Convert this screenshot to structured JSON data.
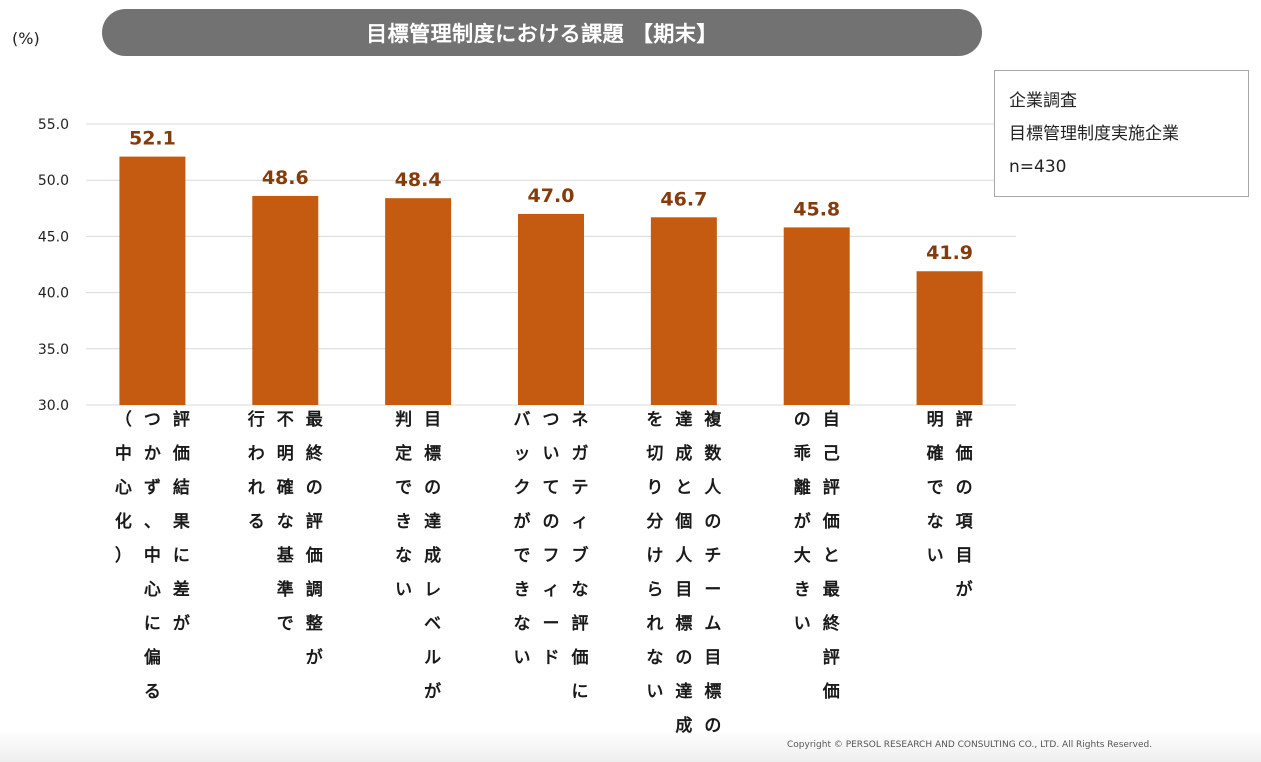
{
  "header": {
    "title": "目標管理制度における課題 【期末】",
    "unit": "(%)"
  },
  "legend": {
    "lines": [
      "企業調査",
      "目標管理制度実施企業",
      "n=430"
    ]
  },
  "footer": {
    "copyright": "Copyright © PERSOL RESEARCH AND CONSULTING CO., LTD. All Rights Reserved."
  },
  "colors": {
    "bar": "#C55A11",
    "value_label": "#843C0C",
    "grid": "#D9D9D9",
    "title_bg": "#727272"
  },
  "chart_data": {
    "type": "bar",
    "title": "目標管理制度における課題 【期末】",
    "ylabel": "(%)",
    "xlabel": "",
    "ylim": [
      30,
      55
    ],
    "yticks": [
      "55.0",
      "50.0",
      "45.0",
      "40.0",
      "35.0",
      "30.0"
    ],
    "grid": true,
    "categories": [
      {
        "id": "central-tendency",
        "columns": [
          "評価結果に差が",
          "つかず、中心に偏る",
          "（中心化）"
        ]
      },
      {
        "id": "unclear-adjustment",
        "columns": [
          "最終の評価調整が",
          "不明確な基準で",
          "行われる"
        ]
      },
      {
        "id": "achievement-level",
        "columns": [
          "目標の達成レベルが",
          "判定できない"
        ]
      },
      {
        "id": "negative-feedback",
        "columns": [
          "ネガティブな評価に",
          "ついてのフィード",
          "バックができない"
        ]
      },
      {
        "id": "team-vs-individual",
        "columns": [
          "複数人のチーム目標の",
          "達成と個人目標の達成",
          "を切り分けられない"
        ]
      },
      {
        "id": "self-vs-final",
        "columns": [
          "自己評価と最終評価",
          "の乖離が大きい"
        ]
      },
      {
        "id": "unclear-items",
        "columns": [
          "評価の項目が",
          "明確でない"
        ]
      }
    ],
    "values": [
      52.1,
      48.6,
      48.4,
      47.0,
      46.7,
      45.8,
      41.9
    ],
    "value_labels": [
      "52.1",
      "48.6",
      "48.4",
      "47.0",
      "46.7",
      "45.8",
      "41.9"
    ]
  }
}
